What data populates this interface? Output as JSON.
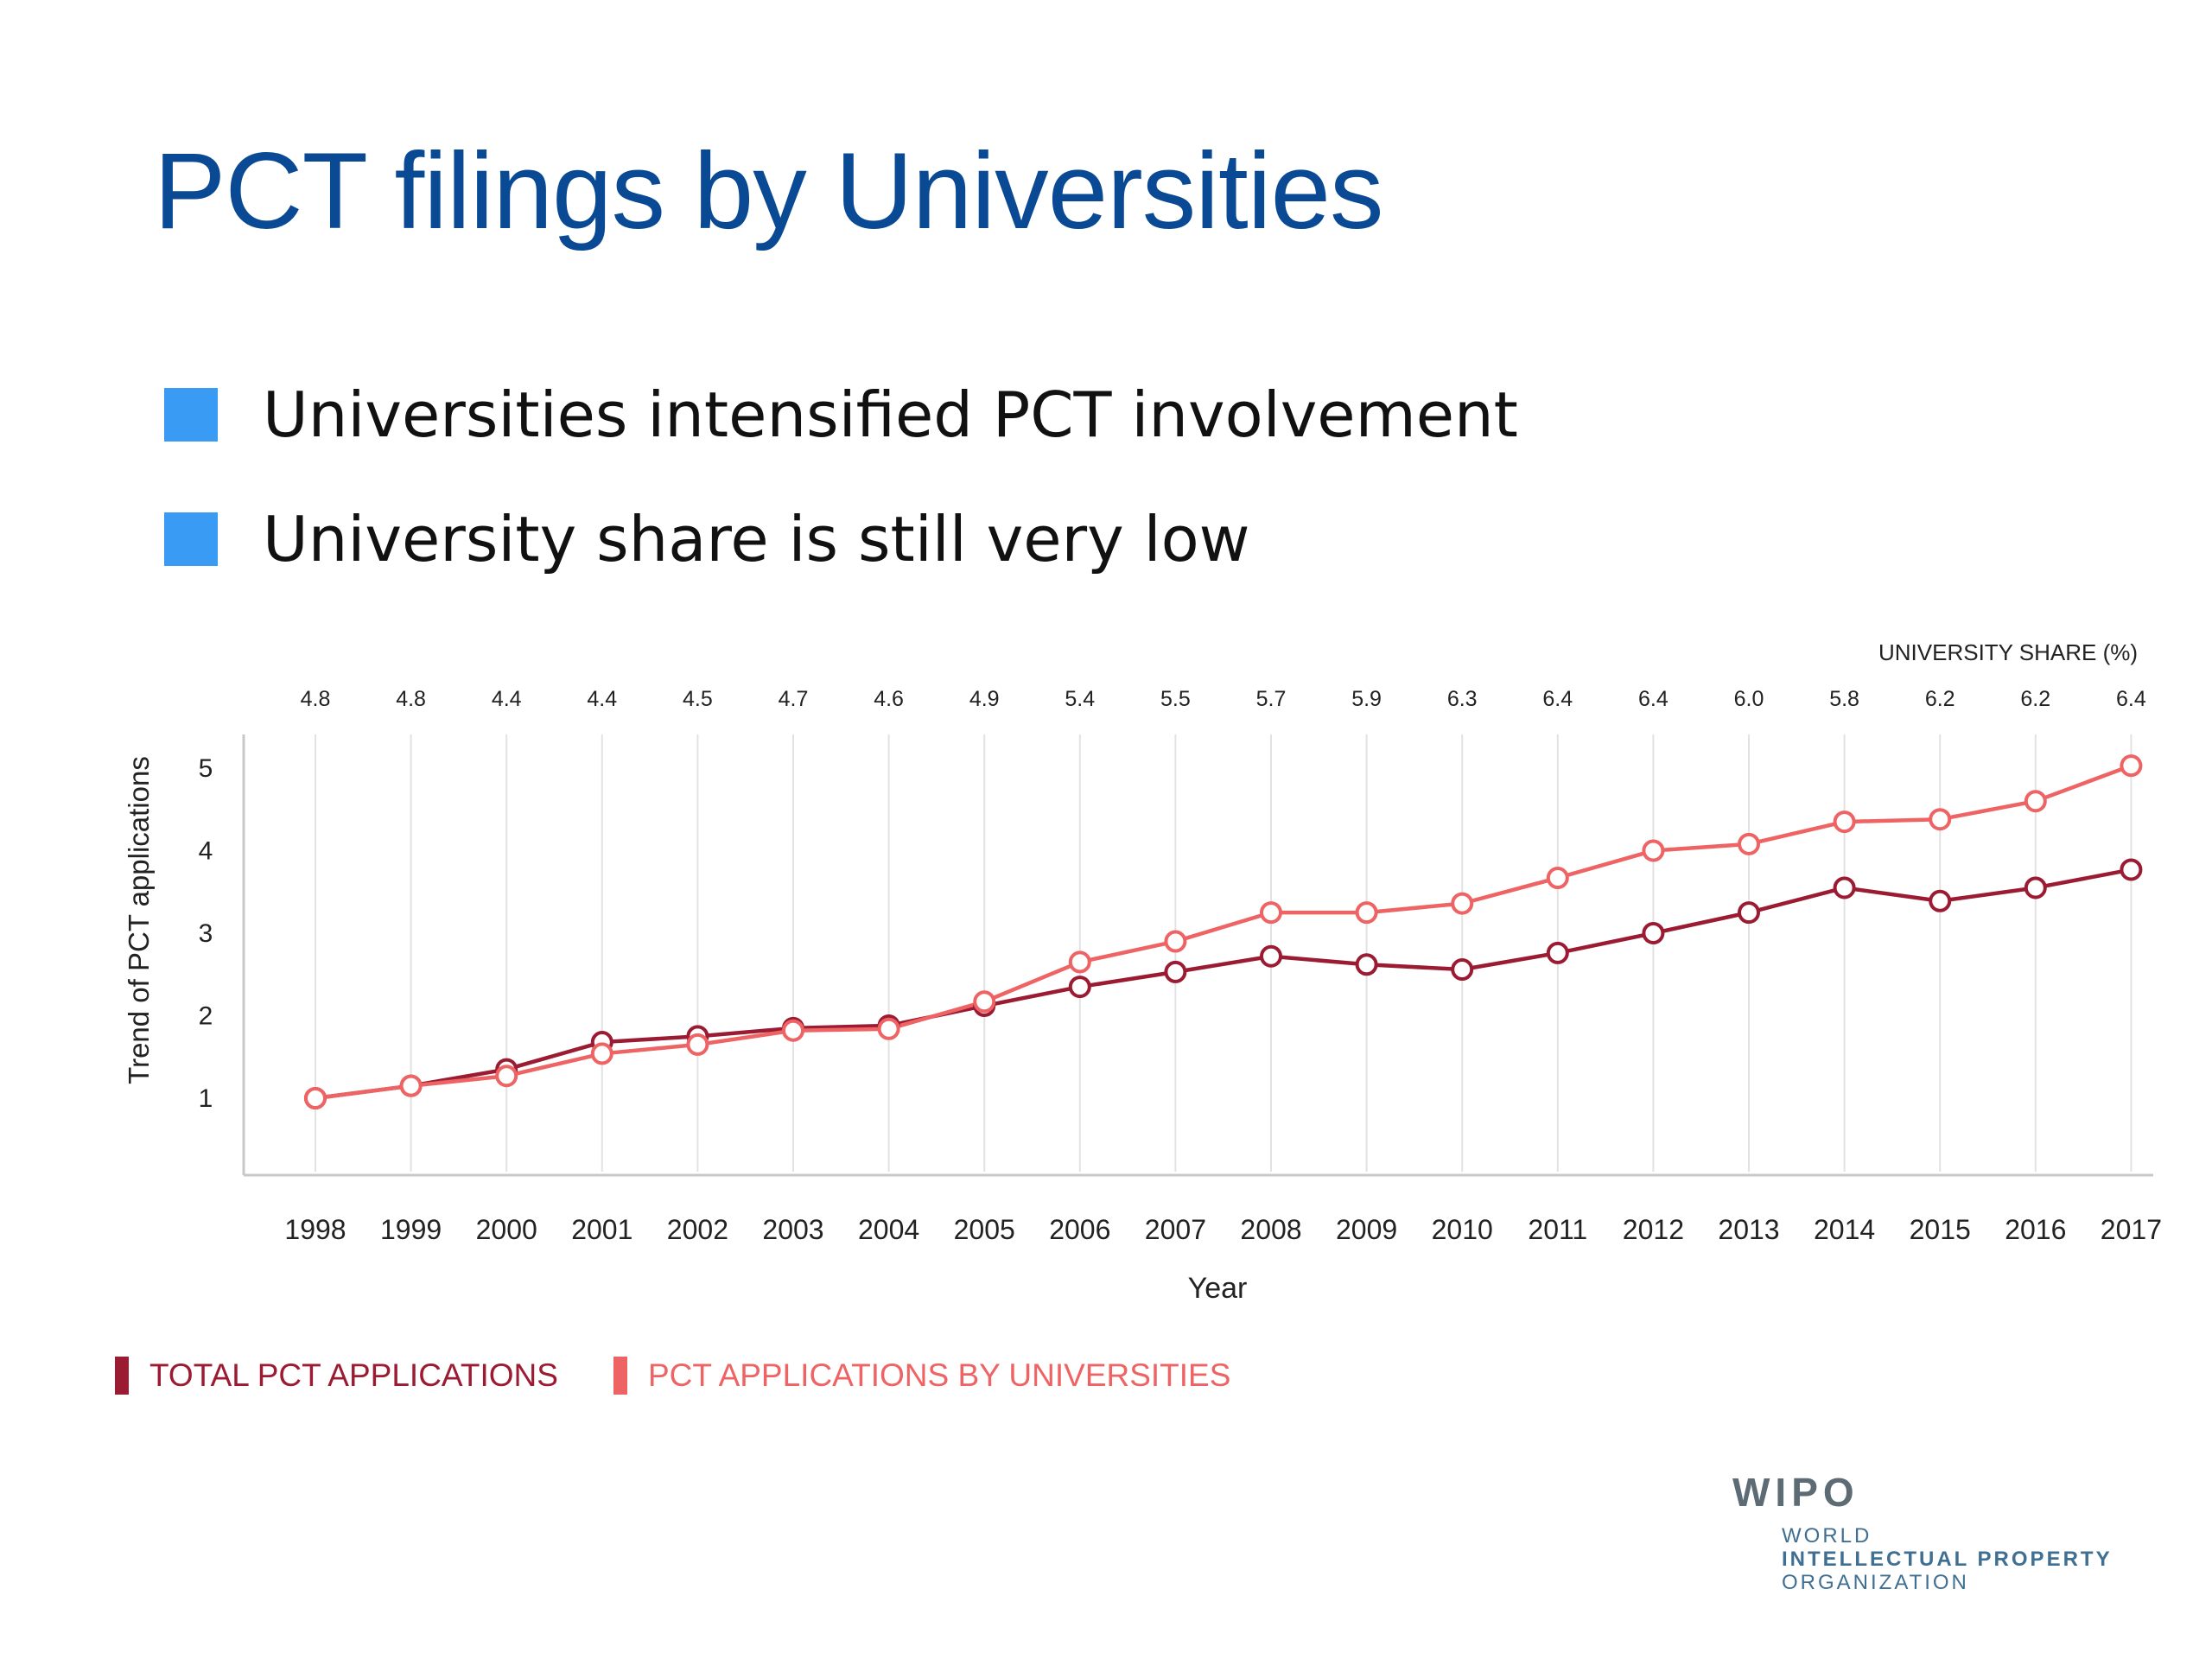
{
  "slide": {
    "title": "PCT filings by Universities",
    "bullets": [
      "Universities intensified PCT involvement",
      "University share is still very low"
    ],
    "bullet_color": "#3a9bf5",
    "title_color": "#0a4a94"
  },
  "chart_data": {
    "type": "line",
    "xlabel": "Year",
    "ylabel": "Trend of PCT applications",
    "x": [
      1998,
      1999,
      2000,
      2001,
      2002,
      2003,
      2004,
      2005,
      2006,
      2007,
      2008,
      2009,
      2010,
      2011,
      2012,
      2013,
      2014,
      2015,
      2016,
      2017
    ],
    "yticks": [
      1,
      2,
      3,
      4,
      5
    ],
    "ylim": [
      0,
      5.4
    ],
    "grid": "vertical",
    "series": [
      {
        "name": "TOTAL PCT APPLICATIONS",
        "color": "#9b1b32",
        "values": [
          1.0,
          1.15,
          1.35,
          1.68,
          1.75,
          1.85,
          1.88,
          2.12,
          2.35,
          2.53,
          2.72,
          2.62,
          2.56,
          2.76,
          3.0,
          3.25,
          3.55,
          3.39,
          3.55,
          3.77
        ]
      },
      {
        "name": "PCT APPLICATIONS BY UNIVERSITIES",
        "color": "#ee6363",
        "values": [
          1.0,
          1.15,
          1.27,
          1.54,
          1.65,
          1.82,
          1.84,
          2.17,
          2.65,
          2.9,
          3.25,
          3.25,
          3.36,
          3.67,
          4.0,
          4.08,
          4.35,
          4.38,
          4.6,
          5.03
        ]
      }
    ],
    "top_axis": {
      "title": "UNIVERSITY SHARE (%)",
      "values": [
        "4.8",
        "4.8",
        "4.4",
        "4.4",
        "4.5",
        "4.7",
        "4.6",
        "4.9",
        "5.4",
        "5.5",
        "5.7",
        "5.9",
        "6.3",
        "6.4",
        "6.4",
        "6.0",
        "5.8",
        "6.2",
        "6.2",
        "6.4"
      ]
    },
    "legend_position": "bottom-left"
  },
  "logo": {
    "acronym": "WIPO",
    "lines": [
      "WORLD",
      "INTELLECTUAL PROPERTY",
      "ORGANIZATION"
    ]
  }
}
